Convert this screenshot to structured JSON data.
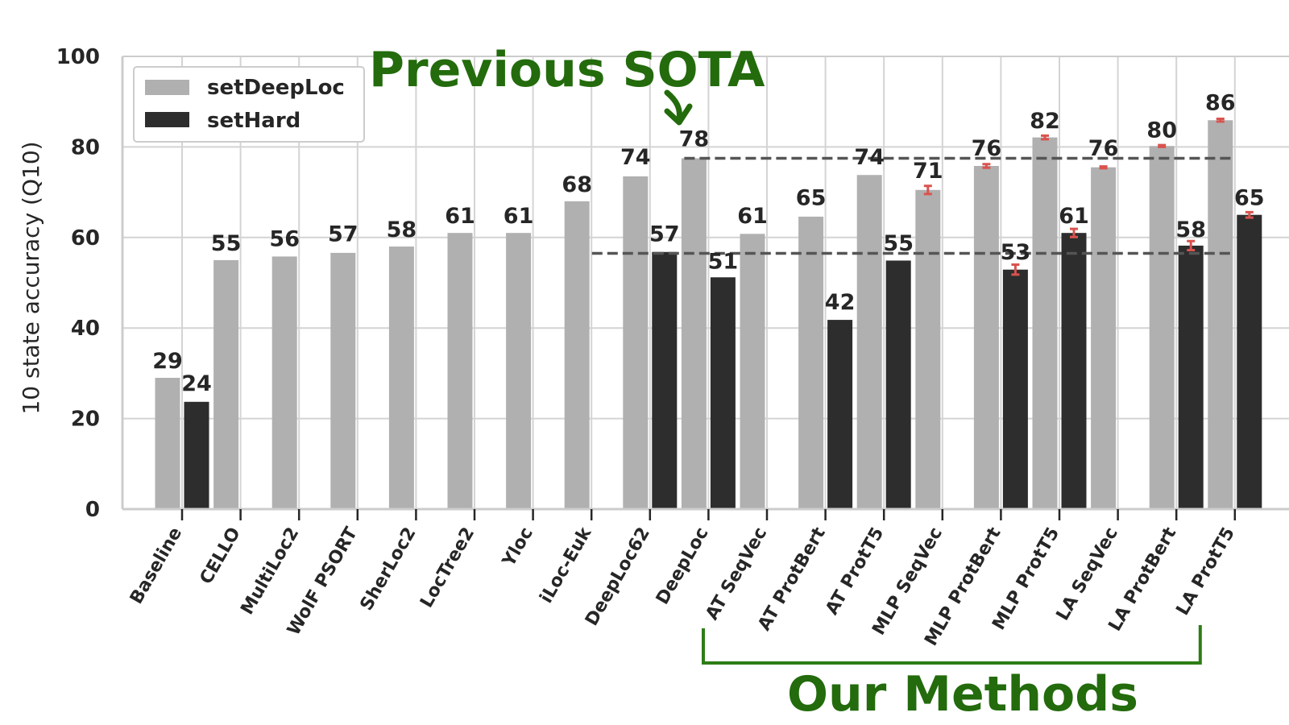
{
  "chart_data": {
    "type": "bar",
    "ylabel": "10 state accuracy (Q10)",
    "xlabel": "",
    "ylim": [
      0,
      100
    ],
    "yticks": [
      0,
      20,
      40,
      60,
      80,
      100
    ],
    "grid": true,
    "legend": "top-left",
    "categories": [
      "Baseline",
      "CELLO",
      "MultiLoc2",
      "WolF PSORT",
      "SherLoc2",
      "LocTree2",
      "Yloc",
      "iLoc-Euk",
      "DeepLoc62",
      "DeepLoc",
      "AT SeqVec",
      "AT ProtBert",
      "AT ProtT5",
      "MLP SeqVec",
      "MLP ProtBert",
      "MLP ProtT5",
      "LA SeqVec",
      "LA ProtBert",
      "LA ProtT5"
    ],
    "series": [
      {
        "name": "setDeepLoc",
        "color": "#b0b0b0",
        "values": [
          29,
          55,
          56,
          57,
          58,
          61,
          61,
          68,
          74,
          78,
          61,
          65,
          74,
          71,
          76,
          82,
          76,
          80,
          86
        ],
        "value_labels": [
          "29",
          "55",
          "56",
          "57",
          "58",
          "61",
          "61",
          "68",
          "74",
          "78",
          "61",
          "65",
          "74",
          "71",
          "76",
          "82",
          "76",
          "80",
          "86"
        ],
        "bar_values": [
          29,
          55,
          55.8,
          56.6,
          58,
          61,
          61,
          68,
          73.5,
          77.5,
          60.8,
          64.6,
          73.8,
          70.5,
          75.8,
          82.1,
          75.5,
          80.2,
          85.9
        ],
        "error": [
          null,
          null,
          null,
          null,
          null,
          null,
          null,
          null,
          null,
          null,
          null,
          null,
          null,
          0.9,
          0.4,
          0.4,
          0.2,
          0.2,
          0.3
        ]
      },
      {
        "name": "setHard",
        "color": "#2d2d2d",
        "values": [
          24,
          null,
          null,
          null,
          null,
          null,
          null,
          null,
          57,
          51,
          null,
          42,
          55,
          null,
          53,
          61,
          null,
          58,
          65
        ],
        "value_labels": [
          "24",
          null,
          null,
          null,
          null,
          null,
          null,
          null,
          "57",
          "51",
          null,
          "42",
          "55",
          null,
          "53",
          "61",
          null,
          "58",
          "65"
        ],
        "bar_values": [
          23.7,
          null,
          null,
          null,
          null,
          null,
          null,
          null,
          56.8,
          51.2,
          null,
          41.8,
          54.9,
          null,
          52.9,
          61,
          null,
          58.2,
          65
        ],
        "error": [
          null,
          null,
          null,
          null,
          null,
          null,
          null,
          null,
          null,
          null,
          null,
          null,
          null,
          null,
          1.1,
          0.9,
          null,
          1.0,
          0.6
        ]
      }
    ],
    "reference_lines": [
      {
        "y": 77.5,
        "from": "DeepLoc",
        "to": "LA ProtT5",
        "style": "dashed"
      },
      {
        "y": 56.5,
        "from": "DeepLoc62",
        "to": "LA ProtT5",
        "style": "dashed"
      }
    ],
    "annotations": [
      {
        "text": "Previous SOTA",
        "color": "#236b0c",
        "points_to": "DeepLoc"
      },
      {
        "text": "Our Methods",
        "color": "#236b0c",
        "bracket_from": "AT SeqVec",
        "bracket_to": "LA ProtT5"
      }
    ]
  }
}
